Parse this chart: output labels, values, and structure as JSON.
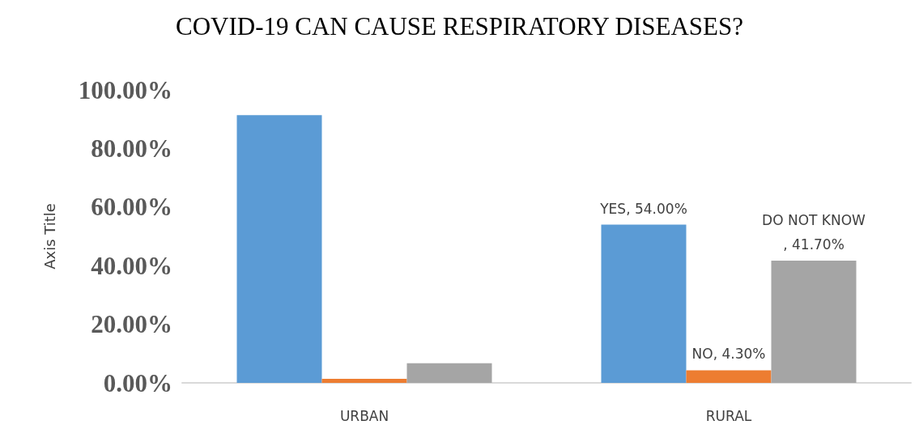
{
  "chart_data": {
    "type": "bar",
    "title": "COVID-19 CAN CAUSE RESPIRATORY DISEASES?",
    "ylabel": "Axis Title",
    "categories": [
      "URBAN",
      "RURAL"
    ],
    "series": [
      {
        "color": "#5b9bd5",
        "values": [
          91.4,
          54.0
        ],
        "value_labels": [
          null,
          "YES, 54.00%"
        ]
      },
      {
        "color": "#ed7d31",
        "values": [
          1.4,
          4.3
        ],
        "value_labels": [
          null,
          "NO, 4.30%"
        ]
      },
      {
        "color": "#a5a5a5",
        "values": [
          6.7,
          41.7
        ],
        "value_labels": [
          null,
          "DO NOT KNOW\n, 41.70%"
        ]
      }
    ],
    "ylim": [
      0,
      100
    ],
    "yticks": [
      {
        "value": 0,
        "label": "0.00%"
      },
      {
        "value": 20,
        "label": "20.00%"
      },
      {
        "value": 40,
        "label": "40.00%"
      },
      {
        "value": 60,
        "label": "60.00%"
      },
      {
        "value": 80,
        "label": "80.00%"
      },
      {
        "value": 100,
        "label": "100.00%"
      }
    ],
    "grid": false,
    "legend": false
  }
}
